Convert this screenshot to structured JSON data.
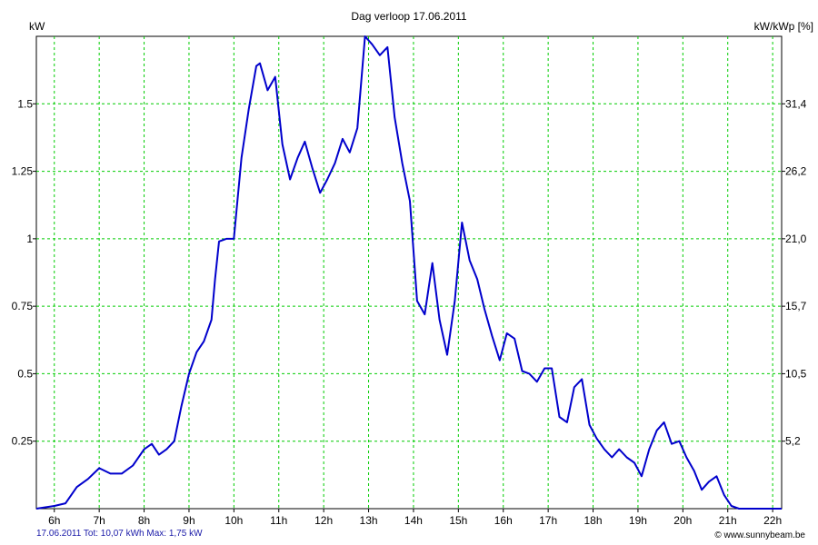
{
  "chart_data": {
    "type": "line",
    "title": "Dag  verloop 17.06.2011",
    "ylabel_left": "kW",
    "ylabel_right": "kW/kWp [%]",
    "x_ticks": [
      "6h",
      "7h",
      "8h",
      "9h",
      "10h",
      "11h",
      "12h",
      "13h",
      "14h",
      "15h",
      "16h",
      "17h",
      "18h",
      "19h",
      "20h",
      "21h",
      "22h"
    ],
    "y_ticks_left": [
      "0.25",
      "0.5",
      "0.75",
      "1",
      "1.25",
      "1.5"
    ],
    "y_ticks_right": [
      "5,2",
      "10,5",
      "15,7",
      "21,0",
      "26,2",
      "31,4"
    ],
    "xlim": [
      5.6,
      22.2
    ],
    "ylim": [
      0,
      1.75
    ],
    "grid": true,
    "series": [
      {
        "color": "#0000cc",
        "x": [
          5.6,
          6.0,
          6.25,
          6.5,
          6.75,
          7.0,
          7.25,
          7.5,
          7.75,
          8.0,
          8.17,
          8.33,
          8.5,
          8.67,
          8.83,
          9.0,
          9.17,
          9.33,
          9.5,
          9.58,
          9.67,
          9.83,
          10.0,
          10.17,
          10.33,
          10.5,
          10.58,
          10.75,
          10.92,
          11.08,
          11.25,
          11.42,
          11.58,
          11.75,
          11.92,
          12.08,
          12.25,
          12.42,
          12.58,
          12.75,
          12.92,
          13.08,
          13.25,
          13.42,
          13.58,
          13.75,
          13.92,
          14.08,
          14.25,
          14.42,
          14.58,
          14.75,
          14.92,
          15.08,
          15.25,
          15.42,
          15.58,
          15.75,
          15.92,
          16.08,
          16.25,
          16.42,
          16.58,
          16.75,
          16.92,
          17.08,
          17.25,
          17.42,
          17.58,
          17.75,
          17.92,
          18.08,
          18.25,
          18.42,
          18.58,
          18.75,
          18.92,
          19.08,
          19.25,
          19.42,
          19.58,
          19.75,
          19.92,
          20.08,
          20.25,
          20.42,
          20.58,
          20.75,
          20.92,
          21.08,
          21.25,
          21.5,
          22.2
        ],
        "y": [
          0,
          0.01,
          0.02,
          0.08,
          0.11,
          0.15,
          0.13,
          0.13,
          0.16,
          0.22,
          0.24,
          0.2,
          0.22,
          0.25,
          0.38,
          0.5,
          0.58,
          0.62,
          0.7,
          0.85,
          0.99,
          1.0,
          1.0,
          1.3,
          1.48,
          1.64,
          1.65,
          1.55,
          1.6,
          1.35,
          1.22,
          1.3,
          1.36,
          1.26,
          1.17,
          1.22,
          1.28,
          1.37,
          1.32,
          1.41,
          1.75,
          1.72,
          1.68,
          1.71,
          1.45,
          1.28,
          1.14,
          0.77,
          0.72,
          0.91,
          0.7,
          0.57,
          0.77,
          1.06,
          0.92,
          0.85,
          0.74,
          0.64,
          0.55,
          0.65,
          0.63,
          0.51,
          0.5,
          0.47,
          0.52,
          0.52,
          0.34,
          0.32,
          0.45,
          0.48,
          0.31,
          0.26,
          0.22,
          0.19,
          0.22,
          0.19,
          0.17,
          0.12,
          0.22,
          0.29,
          0.32,
          0.24,
          0.25,
          0.19,
          0.14,
          0.07,
          0.1,
          0.12,
          0.05,
          0.01,
          0.0,
          0.0,
          0.0
        ]
      }
    ]
  },
  "footer": {
    "left": "17.06.2011 Tot: 10,07 kWh Max: 1,75 kW",
    "right": "© www.sunnybeam.be"
  }
}
